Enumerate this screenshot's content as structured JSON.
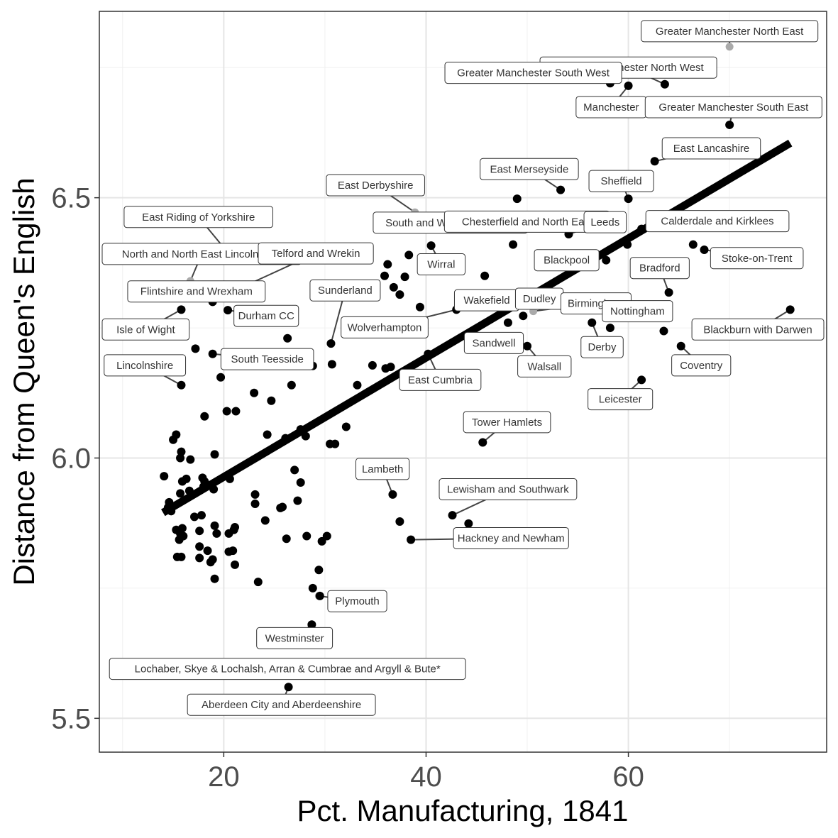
{
  "chart_data": {
    "type": "scatter",
    "xlabel": "Pct. Manufacturing, 1841",
    "ylabel": "Distance from Queen's English",
    "xlim": [
      7.7,
      79.6
    ],
    "ylim": [
      5.435,
      6.858
    ],
    "x_ticks": [
      20,
      40,
      60
    ],
    "y_ticks": [
      5.5,
      6.0,
      6.5
    ],
    "x_tick_labels": [
      "20",
      "40",
      "60"
    ],
    "y_tick_labels": [
      "5.5",
      "6.0",
      "6.5"
    ],
    "grid": true,
    "trend_line": {
      "x": [
        14.0,
        76.0
      ],
      "y": [
        5.895,
        6.605
      ]
    },
    "colors": {
      "point": "#000000",
      "trend": "#000000",
      "label_point": "#aaaaaa",
      "label_border": "#333333"
    },
    "points": [
      {
        "x": 58.2,
        "y": 6.72
      },
      {
        "x": 60.0,
        "y": 6.715
      },
      {
        "x": 63.6,
        "y": 6.718
      },
      {
        "x": 70.0,
        "y": 6.64
      },
      {
        "x": 62.6,
        "y": 6.57
      },
      {
        "x": 53.3,
        "y": 6.515
      },
      {
        "x": 49.0,
        "y": 6.498
      },
      {
        "x": 60.0,
        "y": 6.498
      },
      {
        "x": 53.7,
        "y": 6.458
      },
      {
        "x": 54.8,
        "y": 6.458
      },
      {
        "x": 54.1,
        "y": 6.43
      },
      {
        "x": 61.3,
        "y": 6.44
      },
      {
        "x": 59.9,
        "y": 6.41
      },
      {
        "x": 66.4,
        "y": 6.41
      },
      {
        "x": 67.5,
        "y": 6.4
      },
      {
        "x": 48.6,
        "y": 6.41
      },
      {
        "x": 40.5,
        "y": 6.408
      },
      {
        "x": 38.3,
        "y": 6.39
      },
      {
        "x": 36.2,
        "y": 6.372
      },
      {
        "x": 35.9,
        "y": 6.35
      },
      {
        "x": 45.8,
        "y": 6.35
      },
      {
        "x": 37.9,
        "y": 6.348
      },
      {
        "x": 36.8,
        "y": 6.328
      },
      {
        "x": 37.4,
        "y": 6.314
      },
      {
        "x": 57.8,
        "y": 6.38
      },
      {
        "x": 64.0,
        "y": 6.318
      },
      {
        "x": 39.4,
        "y": 6.29
      },
      {
        "x": 76.0,
        "y": 6.285
      },
      {
        "x": 43.0,
        "y": 6.285
      },
      {
        "x": 49.6,
        "y": 6.273
      },
      {
        "x": 48.1,
        "y": 6.26
      },
      {
        "x": 56.4,
        "y": 6.26
      },
      {
        "x": 58.2,
        "y": 6.25
      },
      {
        "x": 63.5,
        "y": 6.244
      },
      {
        "x": 65.2,
        "y": 6.215
      },
      {
        "x": 50.0,
        "y": 6.215
      },
      {
        "x": 40.2,
        "y": 6.2
      },
      {
        "x": 30.6,
        "y": 6.22
      },
      {
        "x": 30.7,
        "y": 6.18
      },
      {
        "x": 34.7,
        "y": 6.178
      },
      {
        "x": 36.0,
        "y": 6.172
      },
      {
        "x": 36.5,
        "y": 6.175
      },
      {
        "x": 28.8,
        "y": 6.177
      },
      {
        "x": 33.2,
        "y": 6.14
      },
      {
        "x": 61.3,
        "y": 6.15
      },
      {
        "x": 26.3,
        "y": 6.23
      },
      {
        "x": 26.7,
        "y": 6.14
      },
      {
        "x": 23.0,
        "y": 6.125
      },
      {
        "x": 24.7,
        "y": 6.11
      },
      {
        "x": 20.3,
        "y": 6.09
      },
      {
        "x": 21.2,
        "y": 6.09
      },
      {
        "x": 19.7,
        "y": 6.155
      },
      {
        "x": 18.9,
        "y": 6.2
      },
      {
        "x": 17.2,
        "y": 6.21
      },
      {
        "x": 15.8,
        "y": 6.285
      },
      {
        "x": 18.9,
        "y": 6.3
      },
      {
        "x": 20.4,
        "y": 6.284
      },
      {
        "x": 15.8,
        "y": 6.14
      },
      {
        "x": 18.1,
        "y": 6.08
      },
      {
        "x": 32.1,
        "y": 6.06
      },
      {
        "x": 27.6,
        "y": 6.055
      },
      {
        "x": 28.1,
        "y": 6.042
      },
      {
        "x": 26.1,
        "y": 6.038
      },
      {
        "x": 24.3,
        "y": 6.045
      },
      {
        "x": 30.5,
        "y": 6.027
      },
      {
        "x": 31.0,
        "y": 6.027
      },
      {
        "x": 45.6,
        "y": 6.03
      },
      {
        "x": 15.0,
        "y": 6.035
      },
      {
        "x": 15.3,
        "y": 6.045
      },
      {
        "x": 15.8,
        "y": 6.012
      },
      {
        "x": 15.7,
        "y": 6.0
      },
      {
        "x": 16.7,
        "y": 5.997
      },
      {
        "x": 19.1,
        "y": 6.007
      },
      {
        "x": 14.1,
        "y": 5.965
      },
      {
        "x": 15.9,
        "y": 5.955
      },
      {
        "x": 16.3,
        "y": 5.96
      },
      {
        "x": 17.9,
        "y": 5.962
      },
      {
        "x": 18.1,
        "y": 5.955
      },
      {
        "x": 20.6,
        "y": 5.96
      },
      {
        "x": 18.0,
        "y": 5.945
      },
      {
        "x": 19.0,
        "y": 5.94
      },
      {
        "x": 16.6,
        "y": 5.937
      },
      {
        "x": 15.7,
        "y": 5.932
      },
      {
        "x": 27.0,
        "y": 5.977
      },
      {
        "x": 27.6,
        "y": 5.953
      },
      {
        "x": 23.1,
        "y": 5.93
      },
      {
        "x": 23.1,
        "y": 5.912
      },
      {
        "x": 25.6,
        "y": 5.904
      },
      {
        "x": 25.8,
        "y": 5.906
      },
      {
        "x": 27.3,
        "y": 5.918
      },
      {
        "x": 17.8,
        "y": 5.89
      },
      {
        "x": 17.1,
        "y": 5.887
      },
      {
        "x": 14.6,
        "y": 5.915
      },
      {
        "x": 14.5,
        "y": 5.905
      },
      {
        "x": 14.8,
        "y": 5.898
      },
      {
        "x": 36.7,
        "y": 5.93
      },
      {
        "x": 42.6,
        "y": 5.89
      },
      {
        "x": 44.2,
        "y": 5.874
      },
      {
        "x": 37.4,
        "y": 5.878
      },
      {
        "x": 38.5,
        "y": 5.843
      },
      {
        "x": 15.3,
        "y": 5.862
      },
      {
        "x": 15.9,
        "y": 5.865
      },
      {
        "x": 15.7,
        "y": 5.855
      },
      {
        "x": 16.0,
        "y": 5.85
      },
      {
        "x": 15.6,
        "y": 5.843
      },
      {
        "x": 17.6,
        "y": 5.86
      },
      {
        "x": 19.1,
        "y": 5.87
      },
      {
        "x": 19.3,
        "y": 5.855
      },
      {
        "x": 20.5,
        "y": 5.855
      },
      {
        "x": 21.0,
        "y": 5.862
      },
      {
        "x": 21.1,
        "y": 5.867
      },
      {
        "x": 24.1,
        "y": 5.88
      },
      {
        "x": 26.2,
        "y": 5.845
      },
      {
        "x": 28.2,
        "y": 5.85
      },
      {
        "x": 29.7,
        "y": 5.84
      },
      {
        "x": 30.2,
        "y": 5.85
      },
      {
        "x": 17.6,
        "y": 5.83
      },
      {
        "x": 18.4,
        "y": 5.822
      },
      {
        "x": 20.5,
        "y": 5.82
      },
      {
        "x": 20.9,
        "y": 5.822
      },
      {
        "x": 15.4,
        "y": 5.81
      },
      {
        "x": 15.8,
        "y": 5.81
      },
      {
        "x": 17.6,
        "y": 5.808
      },
      {
        "x": 18.7,
        "y": 5.8
      },
      {
        "x": 18.9,
        "y": 5.805
      },
      {
        "x": 21.1,
        "y": 5.795
      },
      {
        "x": 29.4,
        "y": 5.785
      },
      {
        "x": 19.1,
        "y": 5.768
      },
      {
        "x": 23.4,
        "y": 5.762
      },
      {
        "x": 28.8,
        "y": 5.75
      },
      {
        "x": 29.5,
        "y": 5.735
      },
      {
        "x": 28.7,
        "y": 5.68
      },
      {
        "x": 26.4,
        "y": 5.56
      }
    ],
    "annotations": [
      {
        "label": "Greater Manchester North East",
        "x": 70.0,
        "y": 6.79,
        "lx": 70.0,
        "ly": 6.82
      },
      {
        "label": "Greater Manchester North West",
        "x": 63.6,
        "y": 6.718,
        "lx": 60.0,
        "ly": 6.75
      },
      {
        "label": "Greater Manchester South West",
        "x": 58.2,
        "y": 6.72,
        "lx": 50.6,
        "ly": 6.74
      },
      {
        "label": "Manchester",
        "x": 60.0,
        "y": 6.715,
        "lx": 58.3,
        "ly": 6.674
      },
      {
        "label": "Greater Manchester South East",
        "x": 70.0,
        "y": 6.64,
        "lx": 70.4,
        "ly": 6.674
      },
      {
        "label": "East Lancashire",
        "x": 62.6,
        "y": 6.57,
        "lx": 68.2,
        "ly": 6.595
      },
      {
        "label": "East Merseyside",
        "x": 53.3,
        "y": 6.515,
        "lx": 50.2,
        "ly": 6.555
      },
      {
        "label": "Sheffield",
        "x": 60.0,
        "y": 6.498,
        "lx": 59.3,
        "ly": 6.532
      },
      {
        "label": "East Derbyshire",
        "x": 38.9,
        "y": 6.472,
        "lx": 35.0,
        "ly": 6.524
      },
      {
        "label": "South and West Derbyshire",
        "x": 39.6,
        "y": 6.44,
        "lx": 42.4,
        "ly": 6.452
      },
      {
        "label": "Chesterfield and North East",
        "x": 53.6,
        "y": 6.458,
        "lx": 50.0,
        "ly": 6.454
      },
      {
        "label": "Leeds",
        "x": 54.1,
        "y": 6.43,
        "lx": 57.7,
        "ly": 6.453
      },
      {
        "label": "Calderdale and Kirklees",
        "x": 61.3,
        "y": 6.44,
        "lx": 68.8,
        "ly": 6.455
      },
      {
        "label": "East Riding of Yorkshire",
        "x": 20.6,
        "y": 6.39,
        "lx": 17.5,
        "ly": 6.463
      },
      {
        "label": "North and North East Lincolnshire",
        "x": 16.7,
        "y": 6.34,
        "lx": 17.5,
        "ly": 6.392
      },
      {
        "label": "Telford and Wrekin",
        "x": 20.9,
        "y": 6.32,
        "lx": 29.1,
        "ly": 6.393
      },
      {
        "label": "Wirral",
        "x": 40.5,
        "y": 6.408,
        "lx": 41.5,
        "ly": 6.372
      },
      {
        "label": "Blackpool",
        "x": 55.9,
        "y": 6.38,
        "lx": 53.9,
        "ly": 6.38
      },
      {
        "label": "Stoke-on-Trent",
        "x": 67.5,
        "y": 6.4,
        "lx": 72.7,
        "ly": 6.384
      },
      {
        "label": "Bradford",
        "x": 64.0,
        "y": 6.318,
        "lx": 63.1,
        "ly": 6.365
      },
      {
        "label": "Flintshire and Wrexham",
        "x": 18.9,
        "y": 6.3,
        "lx": 17.3,
        "ly": 6.32
      },
      {
        "label": "Sunderland",
        "x": 30.6,
        "y": 6.22,
        "lx": 32.0,
        "ly": 6.322
      },
      {
        "label": "Wakefield",
        "x": 43.0,
        "y": 6.285,
        "lx": 46.0,
        "ly": 6.303
      },
      {
        "label": "Dudley",
        "x": 48.6,
        "y": 6.29,
        "lx": 51.2,
        "ly": 6.306
      },
      {
        "label": "Birmingham",
        "x": 50.6,
        "y": 6.282,
        "lx": 56.8,
        "ly": 6.297
      },
      {
        "label": "Durham CC",
        "x": 20.4,
        "y": 6.284,
        "lx": 24.2,
        "ly": 6.273
      },
      {
        "label": "Nottingham",
        "x": 60.3,
        "y": 6.27,
        "lx": 60.9,
        "ly": 6.282
      },
      {
        "label": "Isle of Wight",
        "x": 15.8,
        "y": 6.285,
        "lx": 12.2,
        "ly": 6.247
      },
      {
        "label": "Wolverhampton",
        "x": 43.0,
        "y": 6.285,
        "lx": 35.9,
        "ly": 6.251
      },
      {
        "label": "Blackburn with Darwen",
        "x": 76.0,
        "y": 6.285,
        "lx": 74.6,
        "ly": 6.247
      },
      {
        "label": "Sandwell",
        "x": 44.2,
        "y": 6.215,
        "lx": 46.7,
        "ly": 6.221
      },
      {
        "label": "Derby",
        "x": 56.4,
        "y": 6.26,
        "lx": 57.4,
        "ly": 6.213
      },
      {
        "label": "South Teesside",
        "x": 18.9,
        "y": 6.2,
        "lx": 24.3,
        "ly": 6.19
      },
      {
        "label": "Lincolnshire",
        "x": 15.8,
        "y": 6.14,
        "lx": 12.2,
        "ly": 6.178
      },
      {
        "label": "Walsall",
        "x": 50.0,
        "y": 6.215,
        "lx": 51.7,
        "ly": 6.176
      },
      {
        "label": "Coventry",
        "x": 65.2,
        "y": 6.215,
        "lx": 67.2,
        "ly": 6.178
      },
      {
        "label": "East Cumbria",
        "x": 40.2,
        "y": 6.2,
        "lx": 41.4,
        "ly": 6.15
      },
      {
        "label": "Leicester",
        "x": 61.3,
        "y": 6.15,
        "lx": 59.2,
        "ly": 6.113
      },
      {
        "label": "Tower Hamlets",
        "x": 45.6,
        "y": 6.03,
        "lx": 48.0,
        "ly": 6.069
      },
      {
        "label": "Lambeth",
        "x": 36.7,
        "y": 5.93,
        "lx": 35.7,
        "ly": 5.979
      },
      {
        "label": "Lewisham and Southwark",
        "x": 42.6,
        "y": 5.89,
        "lx": 48.1,
        "ly": 5.94
      },
      {
        "label": "Hackney and Newham",
        "x": 38.5,
        "y": 5.843,
        "lx": 48.4,
        "ly": 5.846
      },
      {
        "label": "Plymouth",
        "x": 29.4,
        "y": 5.735,
        "lx": 33.2,
        "ly": 5.725
      },
      {
        "label": "Westminster",
        "x": 28.7,
        "y": 5.68,
        "lx": 27.0,
        "ly": 5.654
      },
      {
        "label": "Lochaber, Skye & Lochalsh, Arran & Cumbrae and Argyll & Bute*",
        "x": 25.1,
        "y": 5.598,
        "lx": 26.3,
        "ly": 5.595
      },
      {
        "label": "Aberdeen City and Aberdeenshire",
        "x": 26.4,
        "y": 5.56,
        "lx": 25.7,
        "ly": 5.526
      }
    ]
  }
}
